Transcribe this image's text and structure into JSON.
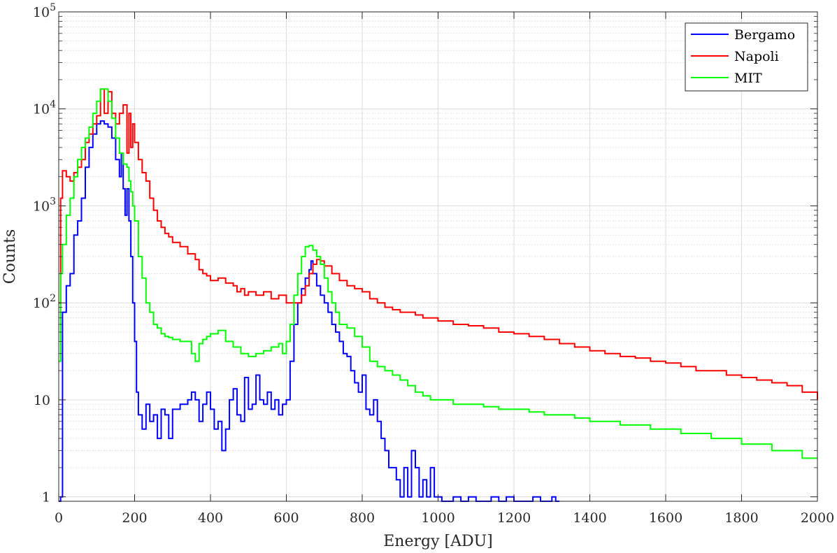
{
  "chart_data": {
    "type": "line",
    "title": "",
    "xlabel": "Energy [ADU]",
    "ylabel": "Counts",
    "xlim": [
      0,
      2000
    ],
    "ylim": [
      0.9,
      100000
    ],
    "yscale": "log",
    "grid": true,
    "legend": "top-right",
    "x_ticks": [
      "0",
      "200",
      "400",
      "600",
      "800",
      "1000",
      "1200",
      "1400",
      "1600",
      "1800",
      "2000"
    ],
    "y_ticks": [
      {
        "value": 1,
        "base": "1",
        "exp": ""
      },
      {
        "value": 10,
        "base": "10",
        "exp": ""
      },
      {
        "value": 100,
        "base": "10",
        "exp": "2"
      },
      {
        "value": 1000,
        "base": "10",
        "exp": "3"
      },
      {
        "value": 10000,
        "base": "10",
        "exp": "4"
      },
      {
        "value": 100000,
        "base": "10",
        "exp": "5"
      }
    ],
    "series": [
      {
        "name": "Bergamo",
        "color": "#0000ff",
        "points": [
          [
            0,
            0.9
          ],
          [
            5,
            1
          ],
          [
            10,
            80
          ],
          [
            20,
            150
          ],
          [
            30,
            200
          ],
          [
            40,
            500
          ],
          [
            50,
            700
          ],
          [
            60,
            1200
          ],
          [
            70,
            2500
          ],
          [
            80,
            4000
          ],
          [
            90,
            5500
          ],
          [
            100,
            7000
          ],
          [
            110,
            7500
          ],
          [
            120,
            7000
          ],
          [
            130,
            6500
          ],
          [
            140,
            5000
          ],
          [
            150,
            3000
          ],
          [
            160,
            2000
          ],
          [
            165,
            3500
          ],
          [
            170,
            1500
          ],
          [
            175,
            800
          ],
          [
            180,
            1500
          ],
          [
            185,
            700
          ],
          [
            190,
            300
          ],
          [
            195,
            100
          ],
          [
            200,
            40
          ],
          [
            205,
            12
          ],
          [
            210,
            7
          ],
          [
            220,
            5
          ],
          [
            230,
            9
          ],
          [
            240,
            6
          ],
          [
            250,
            7
          ],
          [
            260,
            4
          ],
          [
            270,
            8
          ],
          [
            280,
            7
          ],
          [
            290,
            4
          ],
          [
            300,
            8
          ],
          [
            320,
            9
          ],
          [
            340,
            10
          ],
          [
            350,
            12
          ],
          [
            360,
            10
          ],
          [
            370,
            6
          ],
          [
            380,
            9
          ],
          [
            390,
            12
          ],
          [
            400,
            8
          ],
          [
            410,
            5
          ],
          [
            420,
            6
          ],
          [
            430,
            3
          ],
          [
            440,
            5
          ],
          [
            450,
            10
          ],
          [
            460,
            13
          ],
          [
            470,
            7
          ],
          [
            480,
            6
          ],
          [
            490,
            17
          ],
          [
            500,
            8
          ],
          [
            510,
            9
          ],
          [
            520,
            18
          ],
          [
            530,
            10
          ],
          [
            540,
            9
          ],
          [
            550,
            12
          ],
          [
            560,
            8
          ],
          [
            570,
            10
          ],
          [
            580,
            7
          ],
          [
            590,
            9
          ],
          [
            600,
            10
          ],
          [
            610,
            25
          ],
          [
            620,
            60
          ],
          [
            630,
            100
          ],
          [
            640,
            140
          ],
          [
            650,
            180
          ],
          [
            660,
            220
          ],
          [
            665,
            270
          ],
          [
            670,
            200
          ],
          [
            680,
            150
          ],
          [
            690,
            120
          ],
          [
            700,
            100
          ],
          [
            710,
            80
          ],
          [
            720,
            60
          ],
          [
            730,
            50
          ],
          [
            740,
            40
          ],
          [
            750,
            30
          ],
          [
            760,
            28
          ],
          [
            770,
            20
          ],
          [
            780,
            15
          ],
          [
            790,
            12
          ],
          [
            800,
            18
          ],
          [
            810,
            8
          ],
          [
            820,
            7
          ],
          [
            830,
            10
          ],
          [
            840,
            6
          ],
          [
            850,
            4
          ],
          [
            860,
            3
          ],
          [
            870,
            2
          ],
          [
            880,
            2
          ],
          [
            890,
            1.5
          ],
          [
            900,
            1
          ],
          [
            910,
            2
          ],
          [
            920,
            1
          ],
          [
            930,
            3
          ],
          [
            940,
            2
          ],
          [
            950,
            1
          ],
          [
            960,
            1.5
          ],
          [
            970,
            1
          ],
          [
            980,
            2
          ],
          [
            990,
            1
          ],
          [
            1000,
            1
          ],
          [
            1010,
            0.9
          ],
          [
            1040,
            1
          ],
          [
            1060,
            0.9
          ],
          [
            1080,
            1
          ],
          [
            1100,
            0.9
          ],
          [
            1140,
            1
          ],
          [
            1160,
            0.9
          ],
          [
            1180,
            1
          ],
          [
            1200,
            0.9
          ],
          [
            1250,
            1
          ],
          [
            1270,
            0.9
          ],
          [
            1300,
            1
          ],
          [
            1310,
            0.9
          ]
        ]
      },
      {
        "name": "Napoli",
        "color": "#ff0000",
        "points": [
          [
            0,
            100
          ],
          [
            5,
            1200
          ],
          [
            10,
            2300
          ],
          [
            20,
            2000
          ],
          [
            30,
            1800
          ],
          [
            40,
            2200
          ],
          [
            50,
            2500
          ],
          [
            60,
            3000
          ],
          [
            70,
            4500
          ],
          [
            80,
            5500
          ],
          [
            90,
            7000
          ],
          [
            100,
            8500
          ],
          [
            110,
            16000
          ],
          [
            120,
            9000
          ],
          [
            130,
            15000
          ],
          [
            140,
            9000
          ],
          [
            150,
            7000
          ],
          [
            160,
            9000
          ],
          [
            170,
            11000
          ],
          [
            180,
            3500
          ],
          [
            185,
            9000
          ],
          [
            190,
            4000
          ],
          [
            195,
            7000
          ],
          [
            200,
            4500
          ],
          [
            210,
            3000
          ],
          [
            220,
            2200
          ],
          [
            230,
            1800
          ],
          [
            240,
            1200
          ],
          [
            250,
            900
          ],
          [
            260,
            700
          ],
          [
            270,
            600
          ],
          [
            280,
            520
          ],
          [
            290,
            480
          ],
          [
            300,
            420
          ],
          [
            320,
            380
          ],
          [
            340,
            320
          ],
          [
            360,
            280
          ],
          [
            370,
            220
          ],
          [
            380,
            200
          ],
          [
            390,
            190
          ],
          [
            400,
            170
          ],
          [
            420,
            180
          ],
          [
            440,
            160
          ],
          [
            460,
            150
          ],
          [
            470,
            130
          ],
          [
            480,
            140
          ],
          [
            490,
            120
          ],
          [
            500,
            130
          ],
          [
            520,
            120
          ],
          [
            540,
            130
          ],
          [
            560,
            110
          ],
          [
            580,
            120
          ],
          [
            600,
            100
          ],
          [
            620,
            100
          ],
          [
            640,
            120
          ],
          [
            650,
            150
          ],
          [
            660,
            200
          ],
          [
            670,
            250
          ],
          [
            680,
            280
          ],
          [
            690,
            270
          ],
          [
            700,
            240
          ],
          [
            720,
            200
          ],
          [
            740,
            170
          ],
          [
            760,
            150
          ],
          [
            780,
            140
          ],
          [
            800,
            130
          ],
          [
            820,
            110
          ],
          [
            840,
            100
          ],
          [
            860,
            90
          ],
          [
            880,
            85
          ],
          [
            900,
            80
          ],
          [
            940,
            75
          ],
          [
            960,
            70
          ],
          [
            980,
            70
          ],
          [
            1000,
            65
          ],
          [
            1040,
            60
          ],
          [
            1080,
            58
          ],
          [
            1120,
            55
          ],
          [
            1160,
            50
          ],
          [
            1200,
            48
          ],
          [
            1240,
            45
          ],
          [
            1280,
            42
          ],
          [
            1320,
            38
          ],
          [
            1360,
            35
          ],
          [
            1400,
            32
          ],
          [
            1440,
            30
          ],
          [
            1480,
            28
          ],
          [
            1520,
            27
          ],
          [
            1560,
            25
          ],
          [
            1600,
            24
          ],
          [
            1640,
            22
          ],
          [
            1680,
            20
          ],
          [
            1720,
            20
          ],
          [
            1760,
            18
          ],
          [
            1800,
            17
          ],
          [
            1840,
            16
          ],
          [
            1880,
            15
          ],
          [
            1920,
            14
          ],
          [
            1960,
            12
          ],
          [
            2000,
            10
          ]
        ]
      },
      {
        "name": "MIT",
        "color": "#00ff00",
        "points": [
          [
            0,
            25
          ],
          [
            5,
            200
          ],
          [
            10,
            400
          ],
          [
            20,
            800
          ],
          [
            30,
            1200
          ],
          [
            40,
            2000
          ],
          [
            50,
            3000
          ],
          [
            60,
            4000
          ],
          [
            70,
            5000
          ],
          [
            80,
            6500
          ],
          [
            90,
            9000
          ],
          [
            100,
            12000
          ],
          [
            110,
            16000
          ],
          [
            120,
            16000
          ],
          [
            130,
            12000
          ],
          [
            140,
            8000
          ],
          [
            150,
            5000
          ],
          [
            160,
            3500
          ],
          [
            170,
            2700
          ],
          [
            180,
            2500
          ],
          [
            185,
            1800
          ],
          [
            190,
            1400
          ],
          [
            195,
            1000
          ],
          [
            200,
            700
          ],
          [
            210,
            300
          ],
          [
            220,
            180
          ],
          [
            230,
            100
          ],
          [
            240,
            80
          ],
          [
            250,
            60
          ],
          [
            260,
            55
          ],
          [
            270,
            48
          ],
          [
            280,
            45
          ],
          [
            290,
            44
          ],
          [
            300,
            42
          ],
          [
            320,
            40
          ],
          [
            340,
            40
          ],
          [
            350,
            30
          ],
          [
            360,
            25
          ],
          [
            370,
            38
          ],
          [
            380,
            42
          ],
          [
            390,
            45
          ],
          [
            400,
            48
          ],
          [
            420,
            52
          ],
          [
            440,
            40
          ],
          [
            460,
            35
          ],
          [
            480,
            30
          ],
          [
            500,
            28
          ],
          [
            520,
            30
          ],
          [
            540,
            32
          ],
          [
            560,
            35
          ],
          [
            580,
            38
          ],
          [
            590,
            30
          ],
          [
            600,
            40
          ],
          [
            610,
            60
          ],
          [
            620,
            120
          ],
          [
            630,
            200
          ],
          [
            640,
            300
          ],
          [
            650,
            380
          ],
          [
            660,
            390
          ],
          [
            670,
            350
          ],
          [
            680,
            300
          ],
          [
            690,
            250
          ],
          [
            700,
            180
          ],
          [
            710,
            130
          ],
          [
            720,
            100
          ],
          [
            730,
            80
          ],
          [
            740,
            60
          ],
          [
            760,
            55
          ],
          [
            780,
            45
          ],
          [
            800,
            35
          ],
          [
            820,
            25
          ],
          [
            840,
            22
          ],
          [
            860,
            20
          ],
          [
            880,
            18
          ],
          [
            900,
            16
          ],
          [
            920,
            14
          ],
          [
            940,
            12
          ],
          [
            960,
            11
          ],
          [
            980,
            10
          ],
          [
            1000,
            10
          ],
          [
            1040,
            9
          ],
          [
            1080,
            9
          ],
          [
            1120,
            8.5
          ],
          [
            1160,
            8
          ],
          [
            1200,
            8
          ],
          [
            1240,
            7.5
          ],
          [
            1280,
            7
          ],
          [
            1320,
            7
          ],
          [
            1360,
            6.5
          ],
          [
            1400,
            6
          ],
          [
            1440,
            6
          ],
          [
            1480,
            5.5
          ],
          [
            1520,
            5.5
          ],
          [
            1560,
            5
          ],
          [
            1600,
            5
          ],
          [
            1640,
            4.5
          ],
          [
            1680,
            4.5
          ],
          [
            1720,
            4
          ],
          [
            1760,
            4
          ],
          [
            1800,
            3.5
          ],
          [
            1840,
            3.5
          ],
          [
            1880,
            3
          ],
          [
            1920,
            3
          ],
          [
            1960,
            2.5
          ],
          [
            2000,
            2.5
          ]
        ]
      }
    ]
  }
}
